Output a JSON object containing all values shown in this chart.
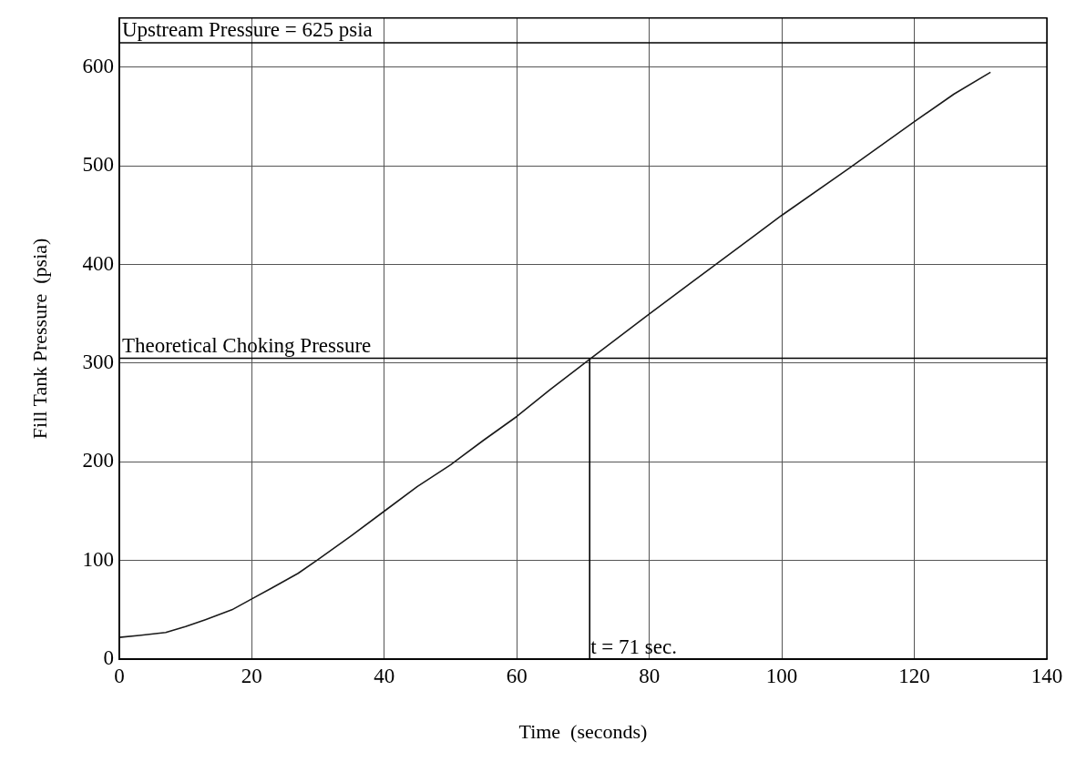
{
  "chart_data": {
    "type": "line",
    "xlabel": "Time  (seconds)",
    "ylabel": "Fill Tank Pressure  (psia)",
    "series": [
      {
        "color": "#1a1a1a",
        "x": [
          0,
          3,
          7,
          10,
          13,
          17,
          20,
          23,
          27,
          30,
          35,
          40,
          45,
          50,
          55,
          60,
          65,
          71,
          80,
          90,
          100,
          110,
          120,
          126,
          131.5
        ],
        "values": [
          22,
          24,
          27,
          33,
          40,
          50,
          61,
          72,
          87,
          101,
          125,
          150,
          175,
          197,
          222,
          246,
          273,
          304,
          350,
          400,
          450,
          497,
          545,
          573,
          595
        ]
      },
      {
        "color": "#000000",
        "x": [
          71,
          71
        ],
        "values": [
          0,
          305
        ]
      }
    ],
    "xlim": [
      0,
      140
    ],
    "xticks": [
      0,
      20,
      40,
      60,
      80,
      100,
      120,
      140
    ],
    "ylim": [
      0,
      650
    ],
    "yticks": [
      0,
      100,
      200,
      300,
      400,
      500,
      600
    ],
    "grid": true,
    "marker": "none",
    "ref_lines": [
      {
        "axis": "y",
        "value": 625,
        "label": "Upstream Pressure = 625 psia",
        "color": "#000000"
      },
      {
        "axis": "y",
        "value": 305,
        "label": "Theoretical Choking Pressure",
        "color": "#000000"
      }
    ],
    "annotations": [
      {
        "text": "t = 71 sec.",
        "x": 71,
        "y": 0
      }
    ]
  }
}
